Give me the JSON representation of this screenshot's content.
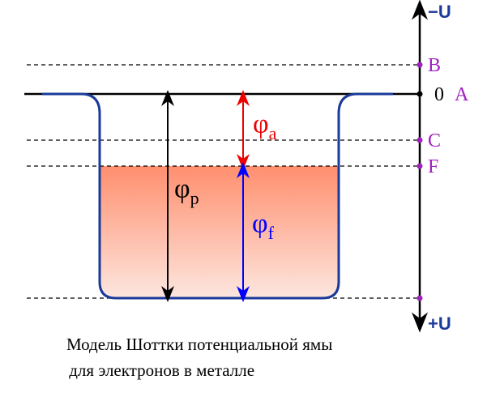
{
  "axis": {
    "top": "−U",
    "bottom": "+U"
  },
  "levels": {
    "b": "B",
    "zero": "0",
    "a": "A",
    "c": "C",
    "f": "F"
  },
  "symbols": {
    "phi_a": {
      "symbol": "φ",
      "sub": "a"
    },
    "phi_p": {
      "symbol": "φ",
      "sub": "p"
    },
    "phi_f": {
      "symbol": "φ",
      "sub": "f"
    }
  },
  "caption": [
    "Модель Шоттки потенциальной ямы",
    " для электронов в металле"
  ]
}
